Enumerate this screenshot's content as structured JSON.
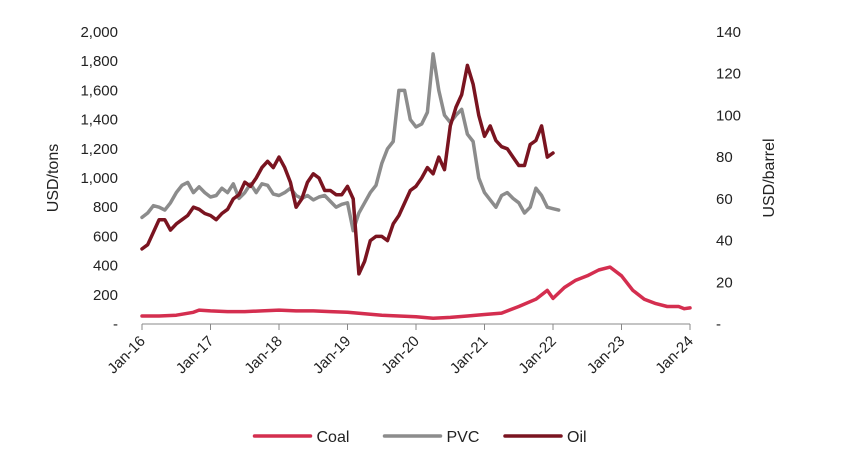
{
  "chart_data": {
    "type": "line",
    "xlabel": "",
    "ylabel_left": "USD/tons",
    "ylabel_right": "USD/barrel",
    "ylim_left": [
      0,
      2000
    ],
    "ylim_right": [
      0,
      140
    ],
    "yticks_left": [
      "-",
      "200",
      "400",
      "600",
      "800",
      "1,000",
      "1,200",
      "1,400",
      "1,600",
      "1,800",
      "2,000"
    ],
    "yticks_right": [
      "-",
      "20",
      "40",
      "60",
      "80",
      "100",
      "120",
      "140"
    ],
    "x_tick_labels": [
      "Jan-16",
      "Jan-17",
      "Jan-18",
      "Jan-19",
      "Jan-20",
      "Jan-21",
      "Jan-22",
      "Jan-23",
      "Jan-24"
    ],
    "x_range_months": [
      0,
      96
    ],
    "grid": false,
    "legend_position": "bottom",
    "series": [
      {
        "name": "Coal",
        "axis": "left",
        "color": "#d42e4f",
        "points": [
          [
            0,
            55
          ],
          [
            3,
            55
          ],
          [
            6,
            60
          ],
          [
            9,
            80
          ],
          [
            10,
            95
          ],
          [
            12,
            90
          ],
          [
            15,
            85
          ],
          [
            18,
            85
          ],
          [
            21,
            90
          ],
          [
            24,
            95
          ],
          [
            27,
            90
          ],
          [
            30,
            90
          ],
          [
            33,
            85
          ],
          [
            36,
            80
          ],
          [
            39,
            70
          ],
          [
            42,
            60
          ],
          [
            45,
            55
          ],
          [
            48,
            50
          ],
          [
            51,
            40
          ],
          [
            54,
            45
          ],
          [
            57,
            55
          ],
          [
            60,
            65
          ],
          [
            63,
            75
          ],
          [
            66,
            120
          ],
          [
            69,
            170
          ],
          [
            71,
            230
          ],
          [
            72,
            175
          ],
          [
            74,
            250
          ],
          [
            76,
            300
          ],
          [
            78,
            330
          ],
          [
            80,
            370
          ],
          [
            82,
            390
          ],
          [
            84,
            330
          ],
          [
            86,
            230
          ],
          [
            88,
            170
          ],
          [
            90,
            140
          ],
          [
            92,
            120
          ],
          [
            94,
            120
          ],
          [
            95,
            105
          ],
          [
            96,
            110
          ]
        ]
      },
      {
        "name": "PVC",
        "axis": "left",
        "color": "#8c8c8c",
        "points": [
          [
            0,
            730
          ],
          [
            1,
            760
          ],
          [
            2,
            810
          ],
          [
            3,
            800
          ],
          [
            4,
            780
          ],
          [
            5,
            830
          ],
          [
            6,
            900
          ],
          [
            7,
            950
          ],
          [
            8,
            970
          ],
          [
            9,
            900
          ],
          [
            10,
            940
          ],
          [
            11,
            900
          ],
          [
            12,
            870
          ],
          [
            13,
            880
          ],
          [
            14,
            930
          ],
          [
            15,
            900
          ],
          [
            16,
            960
          ],
          [
            17,
            860
          ],
          [
            18,
            900
          ],
          [
            19,
            960
          ],
          [
            20,
            900
          ],
          [
            21,
            960
          ],
          [
            22,
            950
          ],
          [
            23,
            890
          ],
          [
            24,
            880
          ],
          [
            25,
            900
          ],
          [
            26,
            930
          ],
          [
            27,
            880
          ],
          [
            28,
            860
          ],
          [
            29,
            880
          ],
          [
            30,
            850
          ],
          [
            31,
            870
          ],
          [
            32,
            880
          ],
          [
            33,
            840
          ],
          [
            34,
            800
          ],
          [
            35,
            820
          ],
          [
            36,
            830
          ],
          [
            37,
            640
          ],
          [
            38,
            760
          ],
          [
            39,
            830
          ],
          [
            40,
            900
          ],
          [
            41,
            950
          ],
          [
            42,
            1100
          ],
          [
            43,
            1200
          ],
          [
            44,
            1250
          ],
          [
            45,
            1600
          ],
          [
            46,
            1600
          ],
          [
            47,
            1400
          ],
          [
            48,
            1350
          ],
          [
            49,
            1370
          ],
          [
            50,
            1450
          ],
          [
            51,
            1850
          ],
          [
            52,
            1600
          ],
          [
            53,
            1430
          ],
          [
            54,
            1380
          ],
          [
            55,
            1430
          ],
          [
            56,
            1470
          ],
          [
            57,
            1300
          ],
          [
            58,
            1250
          ],
          [
            59,
            1000
          ],
          [
            60,
            900
          ],
          [
            61,
            850
          ],
          [
            62,
            800
          ],
          [
            63,
            880
          ],
          [
            64,
            900
          ],
          [
            65,
            860
          ],
          [
            66,
            830
          ],
          [
            67,
            760
          ],
          [
            68,
            800
          ],
          [
            69,
            930
          ],
          [
            70,
            880
          ],
          [
            71,
            800
          ],
          [
            72,
            790
          ],
          [
            73,
            780
          ]
        ]
      },
      {
        "name": "Oil",
        "axis": "right",
        "color": "#7a1420",
        "points": [
          [
            0,
            36
          ],
          [
            1,
            38
          ],
          [
            2,
            44
          ],
          [
            3,
            50
          ],
          [
            4,
            50
          ],
          [
            5,
            45
          ],
          [
            6,
            48
          ],
          [
            7,
            50
          ],
          [
            8,
            52
          ],
          [
            9,
            56
          ],
          [
            10,
            55
          ],
          [
            11,
            53
          ],
          [
            12,
            52
          ],
          [
            13,
            50
          ],
          [
            14,
            53
          ],
          [
            15,
            55
          ],
          [
            16,
            60
          ],
          [
            17,
            62
          ],
          [
            18,
            68
          ],
          [
            19,
            66
          ],
          [
            20,
            70
          ],
          [
            21,
            75
          ],
          [
            22,
            78
          ],
          [
            23,
            75
          ],
          [
            24,
            80
          ],
          [
            25,
            75
          ],
          [
            26,
            68
          ],
          [
            27,
            56
          ],
          [
            28,
            60
          ],
          [
            29,
            68
          ],
          [
            30,
            72
          ],
          [
            31,
            70
          ],
          [
            32,
            64
          ],
          [
            33,
            64
          ],
          [
            34,
            62
          ],
          [
            35,
            62
          ],
          [
            36,
            66
          ],
          [
            37,
            60
          ],
          [
            38,
            24
          ],
          [
            39,
            30
          ],
          [
            40,
            40
          ],
          [
            41,
            42
          ],
          [
            42,
            42
          ],
          [
            43,
            40
          ],
          [
            44,
            48
          ],
          [
            45,
            52
          ],
          [
            46,
            58
          ],
          [
            47,
            64
          ],
          [
            48,
            66
          ],
          [
            49,
            70
          ],
          [
            50,
            75
          ],
          [
            51,
            72
          ],
          [
            52,
            80
          ],
          [
            53,
            74
          ],
          [
            54,
            95
          ],
          [
            55,
            104
          ],
          [
            56,
            110
          ],
          [
            57,
            124
          ],
          [
            58,
            115
          ],
          [
            59,
            100
          ],
          [
            60,
            90
          ],
          [
            61,
            95
          ],
          [
            62,
            88
          ],
          [
            63,
            85
          ],
          [
            64,
            84
          ],
          [
            65,
            80
          ],
          [
            66,
            76
          ],
          [
            67,
            76
          ],
          [
            68,
            86
          ],
          [
            69,
            88
          ],
          [
            70,
            95
          ],
          [
            71,
            80
          ],
          [
            72,
            82
          ]
        ]
      }
    ]
  }
}
